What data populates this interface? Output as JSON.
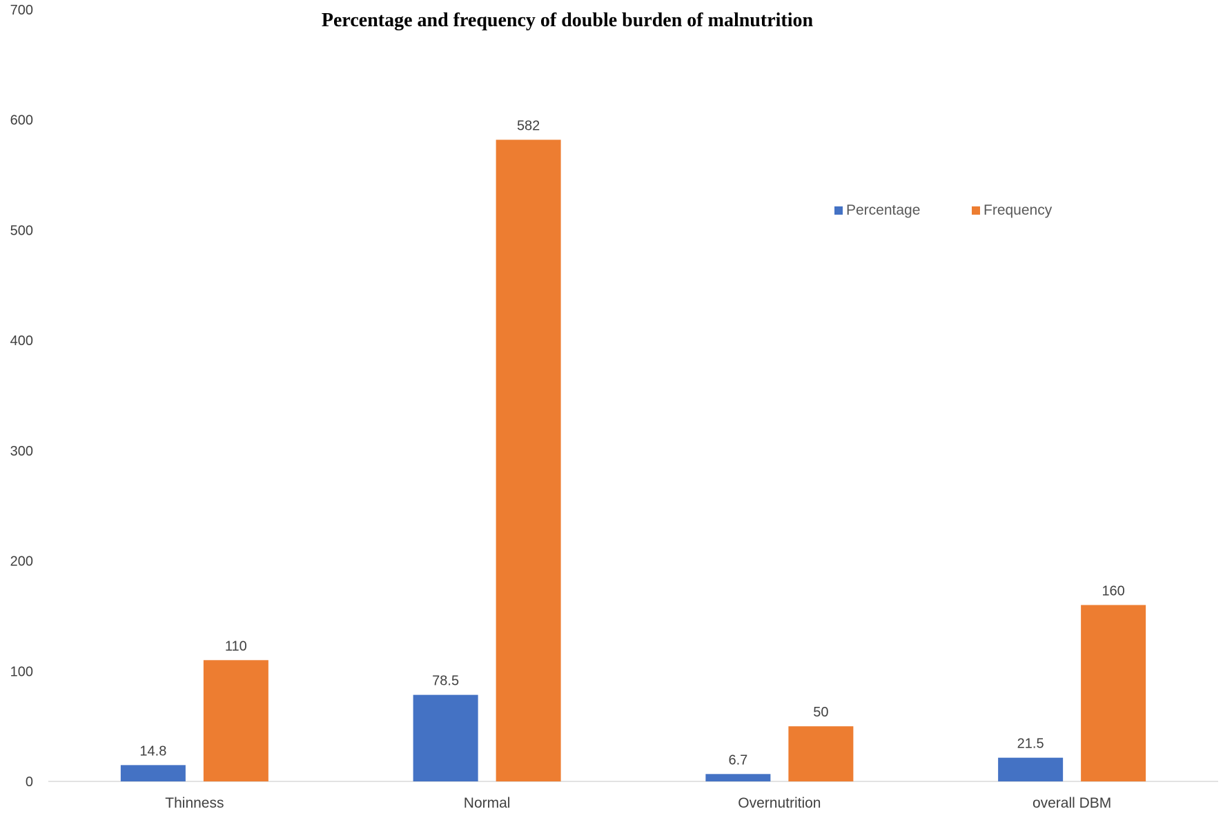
{
  "chart_data": {
    "type": "bar",
    "title": "Percentage and frequency of double burden of malnutrition",
    "xlabel": "",
    "ylabel": "",
    "categories": [
      "Thinness",
      "Normal",
      "Overnutrition",
      "overall DBM"
    ],
    "series": [
      {
        "name": "Percentage",
        "values": [
          14.8,
          78.5,
          6.7,
          21.5
        ],
        "color": "#4472C4"
      },
      {
        "name": "Frequency",
        "values": [
          110,
          582,
          50,
          160
        ],
        "color": "#ED7D31"
      }
    ],
    "ylim": [
      0,
      700
    ],
    "yticks": [
      0,
      100,
      200,
      300,
      400,
      500,
      600,
      700
    ],
    "grid": false,
    "legend": "top-right",
    "data_labels": true
  }
}
